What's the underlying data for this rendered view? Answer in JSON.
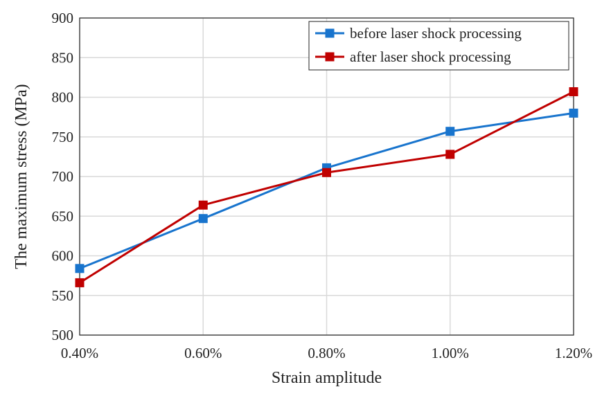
{
  "chart_data": {
    "type": "line",
    "title": "",
    "xlabel": "Strain amplitude",
    "ylabel": "The maximum stress (MPa)",
    "categories": [
      "0.40%",
      "0.60%",
      "0.80%",
      "1.00%",
      "1.20%"
    ],
    "ylim": [
      500,
      900
    ],
    "yticks": [
      500,
      550,
      600,
      650,
      700,
      750,
      800,
      850,
      900
    ],
    "grid": true,
    "legend_position": "top-right",
    "series": [
      {
        "name": "before laser shock processing",
        "color": "#1874CD",
        "values": [
          584,
          647,
          711,
          757,
          780
        ]
      },
      {
        "name": "after laser shock processing",
        "color": "#C00000",
        "values": [
          566,
          664,
          705,
          728,
          807
        ]
      }
    ]
  }
}
